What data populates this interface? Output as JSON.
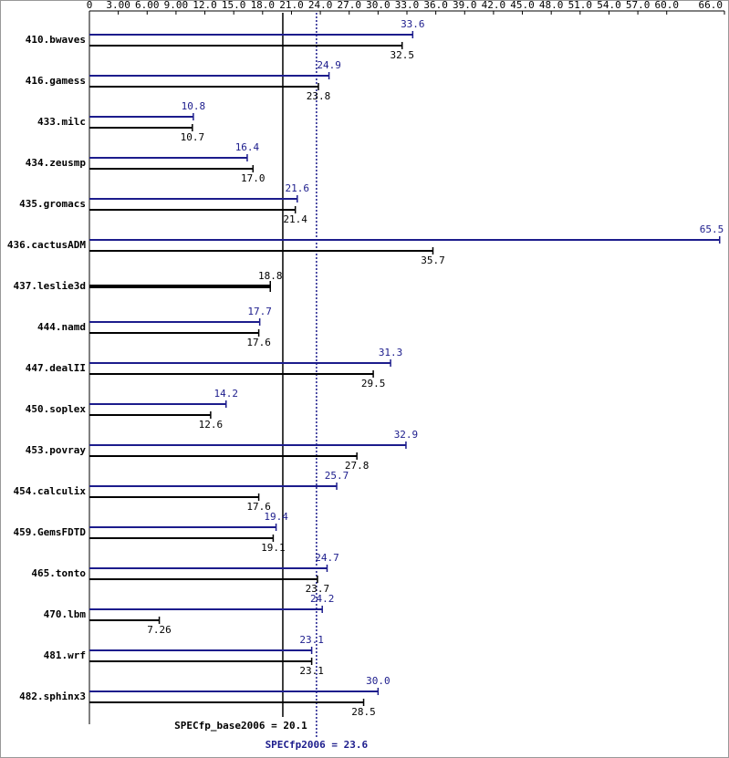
{
  "chart_data": {
    "type": "bar",
    "categories": [
      "410.bwaves",
      "416.gamess",
      "433.milc",
      "434.zeusmp",
      "435.gromacs",
      "436.cactusADM",
      "437.leslie3d",
      "444.namd",
      "447.dealII",
      "450.soplex",
      "453.povray",
      "454.calculix",
      "459.GemsFDTD",
      "465.tonto",
      "470.lbm",
      "481.wrf",
      "482.sphinx3"
    ],
    "series": [
      {
        "color": "#1c1c8c",
        "values": [
          33.6,
          24.9,
          10.8,
          16.4,
          21.6,
          65.5,
          null,
          17.7,
          31.3,
          14.2,
          32.9,
          25.7,
          19.4,
          24.7,
          24.2,
          23.1,
          30.0
        ],
        "value_labels": [
          "33.6",
          "24.9",
          "10.8",
          "16.4",
          "21.6",
          "65.5",
          null,
          "17.7",
          "31.3",
          "14.2",
          "32.9",
          "25.7",
          "19.4",
          "24.7",
          "24.2",
          "23.1",
          "30.0"
        ]
      },
      {
        "color": "#000000",
        "values": [
          32.5,
          23.8,
          10.7,
          17.0,
          21.4,
          35.7,
          18.8,
          17.6,
          29.5,
          12.6,
          27.8,
          17.6,
          19.1,
          23.7,
          7.26,
          23.1,
          28.5
        ],
        "value_labels": [
          "32.5",
          "23.8",
          "10.7",
          "17.0",
          "21.4",
          "35.7",
          "18.8",
          "17.6",
          "29.5",
          "12.6",
          "27.8",
          "17.6",
          "19.1",
          "23.7",
          "7.26",
          "23.1",
          "28.5"
        ]
      }
    ],
    "xlim": [
      0,
      66
    ],
    "xticks": [
      0,
      {
        "value": 3,
        "label": "3.00"
      },
      {
        "value": 6,
        "label": "6.00"
      },
      {
        "value": 9,
        "label": "9.00"
      },
      {
        "value": 12,
        "label": "12.0"
      },
      {
        "value": 15,
        "label": "15.0"
      },
      {
        "value": 18,
        "label": "18.0"
      },
      {
        "value": 21,
        "label": "21.0"
      },
      {
        "value": 24,
        "label": "24.0"
      },
      {
        "value": 27,
        "label": "27.0"
      },
      {
        "value": 30,
        "label": "30.0"
      },
      {
        "value": 33,
        "label": "33.0"
      },
      {
        "value": 36,
        "label": "36.0"
      },
      {
        "value": 39,
        "label": "39.0"
      },
      {
        "value": 42,
        "label": "42.0"
      },
      {
        "value": 45,
        "label": "45.0"
      },
      {
        "value": 48,
        "label": "48.0"
      },
      {
        "value": 51,
        "label": "51.0"
      },
      {
        "value": 54,
        "label": "54.0"
      },
      {
        "value": 57,
        "label": "57.0"
      },
      {
        "value": 60,
        "label": "60.0"
      },
      {
        "value": 66,
        "label": "66.0"
      }
    ],
    "reference_lines": [
      {
        "label": "SPECfp_base2006 = 20.1",
        "value": 20.1,
        "color": "#000000",
        "style": "solid"
      },
      {
        "label": "SPECfp2006 = 23.6",
        "value": 23.6,
        "color": "#1c1c8c",
        "style": "dotted"
      }
    ]
  }
}
